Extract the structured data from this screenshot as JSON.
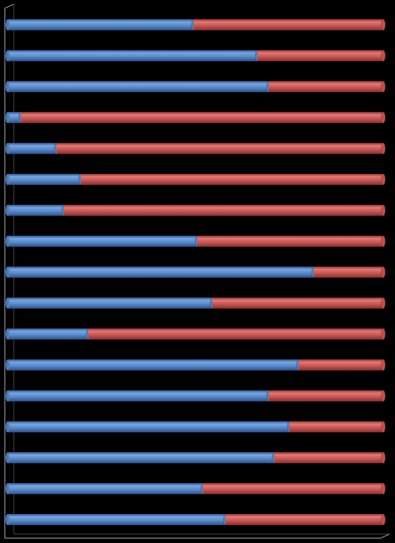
{
  "chart_data": {
    "type": "bar",
    "orientation": "horizontal",
    "stacked": "percent",
    "style": "3d-cylinder",
    "categories": [
      "",
      "",
      "",
      "",
      "",
      "",
      "",
      "",
      "",
      "",
      "",
      "",
      "",
      "",
      "",
      "",
      ""
    ],
    "series": [
      {
        "color": "#4f81bd",
        "values": [
          49.5,
          66.5,
          69.5,
          3.5,
          13,
          19.5,
          15,
          50.5,
          81.5,
          54.5,
          21.5,
          77.5,
          69.5,
          75,
          71,
          52,
          58
        ]
      },
      {
        "color": "#c0504d",
        "values": [
          50.5,
          33.5,
          30.5,
          96.5,
          87,
          80.5,
          85,
          49.5,
          18.5,
          45.5,
          78.5,
          22.5,
          30.5,
          25,
          29,
          48,
          42
        ]
      }
    ],
    "xlim": [
      0,
      100
    ],
    "grid": false,
    "legend": "none",
    "axis_color": "#808080",
    "background": "#000000"
  }
}
